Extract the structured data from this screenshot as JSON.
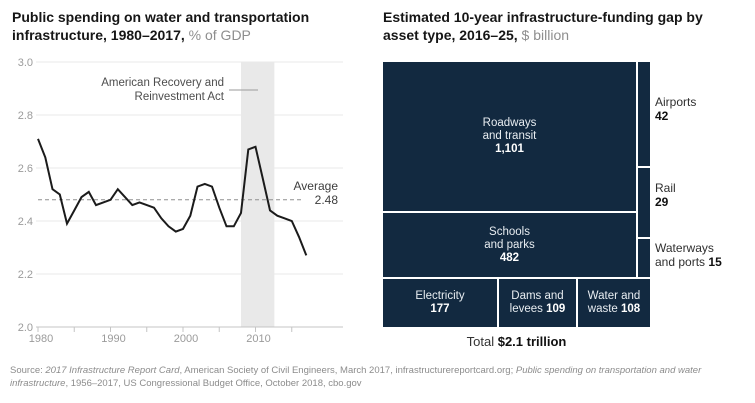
{
  "left_panel": {
    "title_main": "Public spending on water and transportation infrastructure, 1980–2017,",
    "title_unit": " % of GDP"
  },
  "right_panel": {
    "title_main": "Estimated 10-year infrastructure-funding gap by asset type, 2016–25,",
    "title_unit": " $ billion"
  },
  "treemap": {
    "roadways": {
      "line1": "Roadways",
      "line2": "and transit",
      "value": "1,101"
    },
    "schools": {
      "line1": "Schools",
      "line2": "and parks",
      "value": "482"
    },
    "electricity": {
      "label": "Electricity",
      "value": "177"
    },
    "dams": {
      "line1": "Dams and",
      "line2": "levees",
      "value": "109"
    },
    "water": {
      "line1": "Water and",
      "line2": "waste",
      "value": "108"
    },
    "airports": {
      "label": "Airports",
      "value": "42"
    },
    "rail": {
      "label": "Rail",
      "value": "29"
    },
    "waterways": {
      "line1": "Waterways",
      "line2": "and ports",
      "value": "15"
    },
    "total_label": "Total ",
    "total_value": "$2.1 trillion"
  },
  "source": {
    "prefix": "Source: ",
    "italic1": "2017 Infrastructure Report Card",
    "mid": ", American Society of Civil Engineers, March 2017, infrastructurereportcard.org; ",
    "italic2": "Public spending on transportation and water infrastructure",
    "suffix": ", 1956–2017, US Congressional Budget Office, October 2018, cbo.gov"
  },
  "colors": {
    "navy": "#122940",
    "band": "#e9e9e9",
    "line": "#1b1b1b",
    "title_unit_gray": "#8e8e8e",
    "axis_gray": "#9b9b9b",
    "source_gray": "#8c8c8c"
  },
  "chart_data": [
    {
      "type": "line",
      "title": "Public spending on water and transportation infrastructure, 1980–2017, % of GDP",
      "xlabel": "",
      "ylabel": "% of GDP",
      "x": [
        1980,
        1981,
        1982,
        1983,
        1984,
        1985,
        1986,
        1987,
        1988,
        1989,
        1990,
        1991,
        1992,
        1993,
        1994,
        1995,
        1996,
        1997,
        1998,
        1999,
        2000,
        2001,
        2002,
        2003,
        2004,
        2005,
        2006,
        2007,
        2008,
        2009,
        2010,
        2011,
        2012,
        2013,
        2014,
        2015,
        2016,
        2017
      ],
      "values": [
        2.71,
        2.64,
        2.52,
        2.5,
        2.39,
        2.44,
        2.49,
        2.51,
        2.46,
        2.47,
        2.48,
        2.52,
        2.49,
        2.46,
        2.47,
        2.46,
        2.45,
        2.41,
        2.38,
        2.36,
        2.37,
        2.42,
        2.53,
        2.54,
        2.53,
        2.45,
        2.38,
        2.38,
        2.43,
        2.67,
        2.68,
        2.56,
        2.44,
        2.42,
        2.41,
        2.4,
        2.34,
        2.27
      ],
      "ylim": [
        2.0,
        3.0
      ],
      "yticks": [
        3.0,
        2.8,
        2.6,
        2.4,
        2.2,
        2.0
      ],
      "xticks": [
        1980,
        1990,
        2000,
        2010
      ],
      "minor_xticks_step": 5,
      "grid": true,
      "legend": false,
      "average": 2.48,
      "average_label": "Average",
      "annotation_lines": [
        "American Recovery and",
        "Reinvestment Act"
      ],
      "annotation_band_years": [
        2008,
        2012.6
      ]
    },
    {
      "type": "treemap",
      "title": "Estimated 10-year infrastructure-funding gap by asset type, 2016–25, $ billion",
      "items": [
        {
          "label": "Roadways and transit",
          "value": 1101
        },
        {
          "label": "Schools and parks",
          "value": 482
        },
        {
          "label": "Electricity",
          "value": 177
        },
        {
          "label": "Dams and levees",
          "value": 109
        },
        {
          "label": "Water and waste",
          "value": 108
        },
        {
          "label": "Airports",
          "value": 42
        },
        {
          "label": "Rail",
          "value": 29
        },
        {
          "label": "Waterways and ports",
          "value": 15
        }
      ],
      "total": "$2.1 trillion"
    }
  ]
}
